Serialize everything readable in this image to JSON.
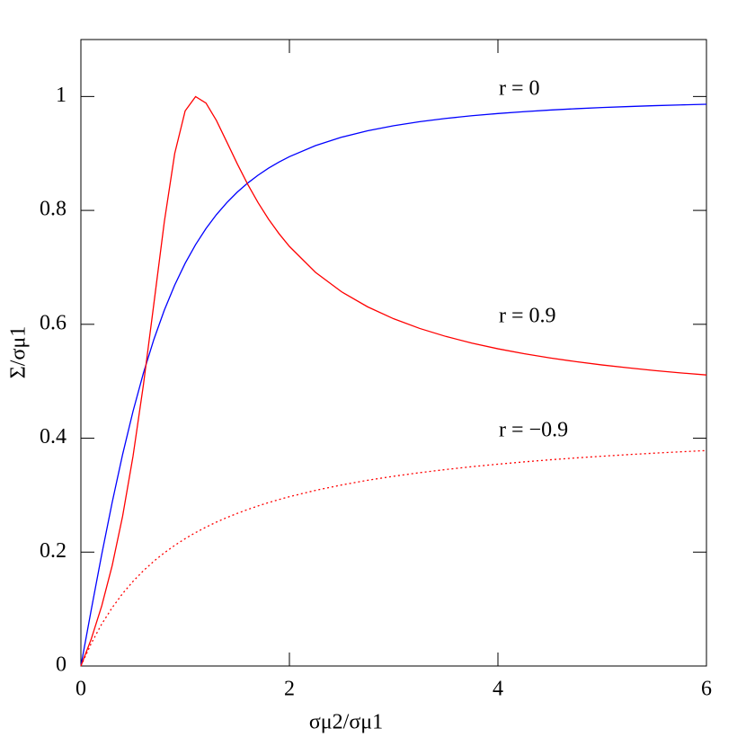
{
  "chart_data": {
    "type": "line",
    "x_label": "σμ2/σμ1",
    "y_label": "Σ/σμ1",
    "x": [
      0,
      0.1,
      0.2,
      0.3,
      0.4,
      0.5,
      0.6,
      0.7,
      0.8,
      0.9,
      1.0,
      1.1,
      1.2,
      1.3,
      1.4,
      1.5,
      1.6,
      1.7,
      1.8,
      1.9,
      2.0,
      2.25,
      2.5,
      2.75,
      3,
      3.25,
      3.5,
      3.75,
      4,
      4.25,
      4.5,
      4.75,
      5,
      5.25,
      5.5,
      5.75,
      6
    ],
    "series": [
      {
        "name": "r = 0",
        "color": "#0000ff",
        "linestyle": "solid",
        "values": [
          0,
          0.0995,
          0.1961,
          0.2873,
          0.3714,
          0.4472,
          0.5145,
          0.5735,
          0.6247,
          0.669,
          0.7071,
          0.7399,
          0.7682,
          0.7926,
          0.8137,
          0.8321,
          0.848,
          0.8619,
          0.8742,
          0.8849,
          0.8944,
          0.9138,
          0.9285,
          0.9398,
          0.9487,
          0.9558,
          0.9615,
          0.9662,
          0.9701,
          0.9734,
          0.9762,
          0.9786,
          0.9806,
          0.9823,
          0.9839,
          0.9852,
          0.9864
        ]
      },
      {
        "name": "r = 0.9",
        "color": "#ff0000",
        "linestyle": "solid",
        "values": [
          0,
          0.0478,
          0.1057,
          0.1763,
          0.2629,
          0.3684,
          0.4942,
          0.6362,
          0.7797,
          0.9,
          0.9747,
          0.9998,
          0.9884,
          0.9578,
          0.92,
          0.8817,
          0.8458,
          0.8134,
          0.7846,
          0.7592,
          0.7368,
          0.6913,
          0.6571,
          0.6307,
          0.6097,
          0.5927,
          0.5787,
          0.567,
          0.557,
          0.5484,
          0.5409,
          0.5344,
          0.5286,
          0.5235,
          0.5188,
          0.5147,
          0.511
        ]
      },
      {
        "name": "r = −0.9",
        "color": "#ff0000",
        "linestyle": "dotted",
        "values": [
          0,
          0.04,
          0.0737,
          0.1024,
          0.1272,
          0.1486,
          0.1674,
          0.184,
          0.1987,
          0.2118,
          0.2236,
          0.2342,
          0.2439,
          0.2527,
          0.2607,
          0.268,
          0.2748,
          0.2811,
          0.2869,
          0.2923,
          0.2973,
          0.3084,
          0.3179,
          0.3261,
          0.3332,
          0.3395,
          0.345,
          0.35,
          0.3544,
          0.3584,
          0.3621,
          0.3654,
          0.3684,
          0.3712,
          0.3737,
          0.3761,
          0.3783
        ]
      }
    ],
    "xlim": [
      0,
      6
    ],
    "xticks": [
      0,
      2,
      4,
      6
    ],
    "ylim": [
      0,
      1.1
    ],
    "yticks": [
      0,
      0.2,
      0.4,
      0.6,
      0.8,
      1
    ],
    "grid": false
  }
}
